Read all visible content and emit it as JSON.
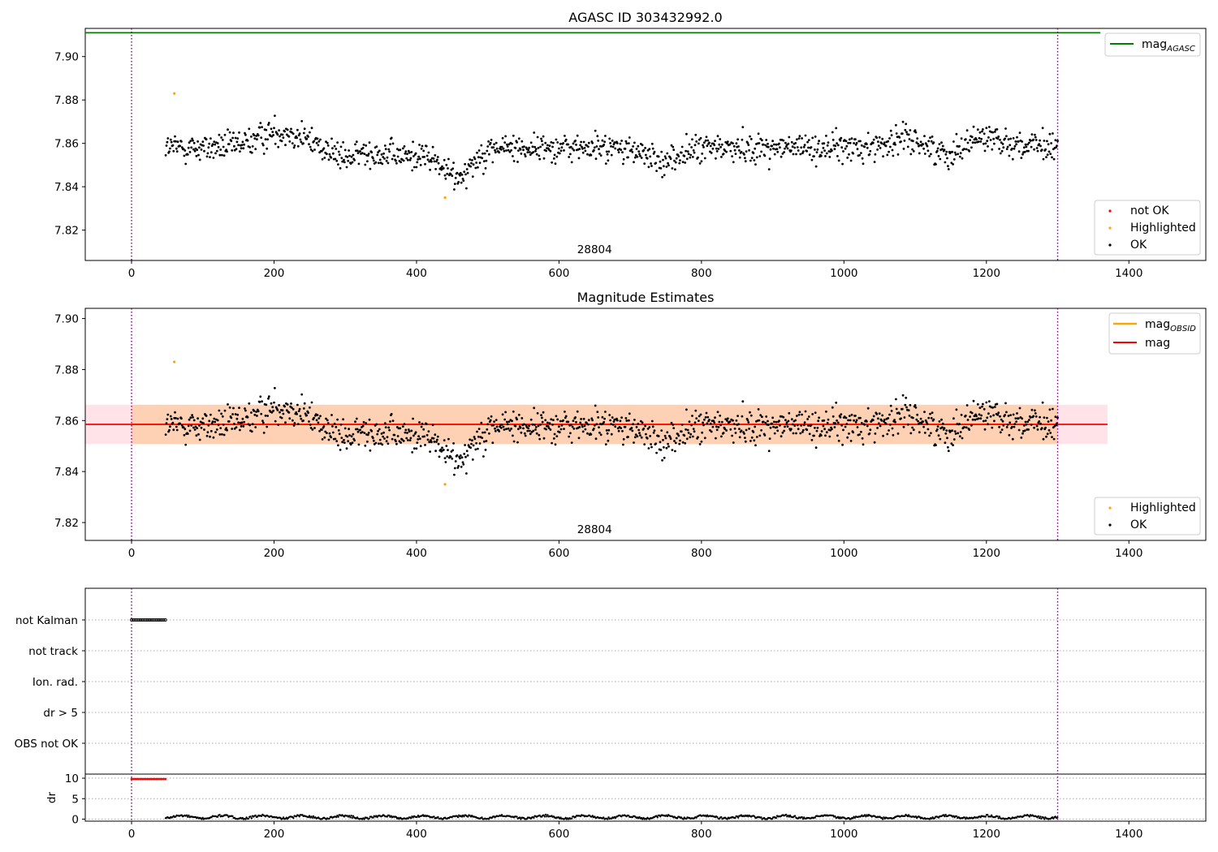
{
  "colors": {
    "ok": "#000000",
    "highlighted": "#ffa500",
    "not_ok": "#ff0000",
    "mag_agasc": "#008000",
    "mag_obsid": "#ffa500",
    "mag": "#ff0000",
    "band_mag": "#ffc0cb",
    "band_obsid": "#ffbf80",
    "obsid_lines": "#800080"
  },
  "chart_data": [
    {
      "type": "scatter",
      "title": "AGASC ID 303432992.0",
      "xlim": [
        -65,
        1508
      ],
      "ylim": [
        7.806,
        7.913
      ],
      "xticks": [
        0,
        200,
        400,
        600,
        800,
        1000,
        1200,
        1400
      ],
      "xtick_labels": [
        "0",
        "200",
        "400",
        "600",
        "800",
        "1000",
        "1200",
        "1400"
      ],
      "yticks": [
        7.82,
        7.84,
        7.86,
        7.88,
        7.9
      ],
      "ytick_labels": [
        "7.82",
        "7.84",
        "7.86",
        "7.88",
        "7.90"
      ],
      "obsid_boundaries": [
        0,
        1300
      ],
      "obsid_label": "28804",
      "obsid_label_x": 650,
      "mag_agasc": 7.911,
      "line_legend": {
        "placement": "top-right",
        "entries": [
          {
            "label": "mag",
            "subscript": "AGASC",
            "color_key": "mag_agasc"
          }
        ]
      },
      "point_legend": {
        "placement": "bottom-right",
        "entries": [
          {
            "label": "not OK",
            "color_key": "not_ok"
          },
          {
            "label": "Highlighted",
            "color_key": "highlighted"
          },
          {
            "label": "OK",
            "color_key": "ok"
          }
        ]
      },
      "series": [
        {
          "name": "OK",
          "x_range": [
            48,
            1300
          ],
          "y_mean": 7.858,
          "y_scatter": 0.007
        }
      ],
      "highlighted_points": [
        {
          "x": 60,
          "y": 7.883
        },
        {
          "x": 440,
          "y": 7.835
        }
      ]
    },
    {
      "type": "scatter",
      "title": "Magnitude Estimates",
      "xlim": [
        -65,
        1508
      ],
      "ylim": [
        7.813,
        7.904
      ],
      "xticks": [
        0,
        200,
        400,
        600,
        800,
        1000,
        1200,
        1400
      ],
      "xtick_labels": [
        "0",
        "200",
        "400",
        "600",
        "800",
        "1000",
        "1200",
        "1400"
      ],
      "yticks": [
        7.82,
        7.84,
        7.86,
        7.88,
        7.9
      ],
      "ytick_labels": [
        "7.82",
        "7.84",
        "7.86",
        "7.88",
        "7.90"
      ],
      "obsid_boundaries": [
        0,
        1300
      ],
      "obsid_label": "28804",
      "obsid_label_x": 650,
      "mag": 7.8585,
      "mag_band": [
        7.8508,
        7.8662
      ],
      "mag_band_x": [
        -65,
        1370
      ],
      "mag_obsid": 7.8585,
      "mag_obsid_band": [
        7.8508,
        7.8662
      ],
      "mag_obsid_band_x": [
        0,
        1300
      ],
      "line_legend": {
        "placement": "top-right",
        "entries": [
          {
            "label": "mag",
            "subscript": "OBSID",
            "color_key": "mag_obsid"
          },
          {
            "label": "mag",
            "subscript": "",
            "color_key": "mag"
          }
        ]
      },
      "point_legend": {
        "placement": "bottom-right",
        "entries": [
          {
            "label": "Highlighted",
            "color_key": "highlighted"
          },
          {
            "label": "OK",
            "color_key": "ok"
          }
        ]
      },
      "highlighted_points": [
        {
          "x": 60,
          "y": 7.883
        },
        {
          "x": 440,
          "y": 7.835
        }
      ]
    },
    {
      "type": "scatter",
      "title": "",
      "xlim": [
        -65,
        1508
      ],
      "xticks": [
        0,
        200,
        400,
        600,
        800,
        1000,
        1200,
        1400
      ],
      "xtick_labels": [
        "0",
        "200",
        "400",
        "600",
        "800",
        "1000",
        "1200",
        "1400"
      ],
      "flag_rows": [
        "not Kalman",
        "not track",
        "Ion. rad.",
        "dr > 5",
        "OBS not OK"
      ],
      "flag_intervals": [
        {
          "row": "not Kalman",
          "x_range": [
            0,
            48
          ]
        }
      ],
      "obsid_boundaries": [
        0,
        1300
      ],
      "dr": {
        "ylabel": "dr",
        "ylim": [
          -0.5,
          11
        ],
        "yticks": [
          0,
          5,
          10
        ],
        "ytick_labels": [
          "0",
          "5",
          "10"
        ],
        "clipped_value": 9.8,
        "clipped_x_range": [
          0,
          48
        ],
        "series_x_range": [
          48,
          1300
        ],
        "series_mean": 0.5
      }
    }
  ]
}
